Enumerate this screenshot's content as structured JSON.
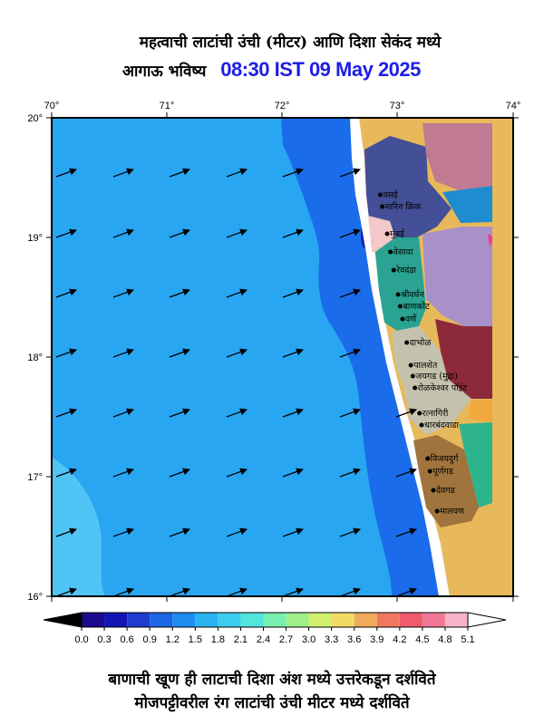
{
  "header": {
    "title_line1": "महत्वाची लाटांची उंची (मीटर) आणि दिशा सेकंद मध्ये",
    "title_line2_prefix": "आगाऊ भविष्य",
    "title_line2_time": "08:30 IST 09 May 2025"
  },
  "axes": {
    "lon_ticks": [
      "70°",
      "71°",
      "72°",
      "73°",
      "74°"
    ],
    "lat_ticks": [
      "20°",
      "19°",
      "18°",
      "17°",
      "16°"
    ]
  },
  "places": [
    "वसई",
    "मारिन क्रिक",
    "मुंबई",
    "वेसावा",
    "रेवदंडा",
    "श्रीवर्धन",
    "बाणकोट",
    "वर्णे",
    "दाभोळ",
    "पालशेत",
    "जयगड (मुद्रा)",
    "रोळकेश्वर पॉइंट",
    "रत्नागिरी",
    "धारबंदवाडा",
    "विजयदुर्ग",
    "पूर्णगड",
    "देवगड",
    "मालवण"
  ],
  "colorbar": {
    "ticks": [
      "0.0",
      "0.3",
      "0.6",
      "0.9",
      "1.2",
      "1.5",
      "1.8",
      "2.1",
      "2.4",
      "2.7",
      "3.0",
      "3.3",
      "3.6",
      "3.9",
      "4.2",
      "4.5",
      "4.8",
      "5.1"
    ],
    "colors": [
      "#1a0a8c",
      "#1414b4",
      "#1e3ccf",
      "#1e64e6",
      "#1e8cf0",
      "#28b4f0",
      "#3ccdf0",
      "#50e6dc",
      "#78f0b4",
      "#a0f08c",
      "#d2f06e",
      "#f0dc64",
      "#f0aa5a",
      "#f07860",
      "#f05a6e",
      "#f07896",
      "#f5b4c8",
      "#fae6f0"
    ]
  },
  "footer": {
    "line1": "बाणाची खूण ही लाटाची दिशा अंश मध्ये उत्तरेकडून दर्शविते",
    "line2": "मोजपट्टीवरील रंग लाटांची उंची मीटर मध्ये दर्शविते"
  }
}
